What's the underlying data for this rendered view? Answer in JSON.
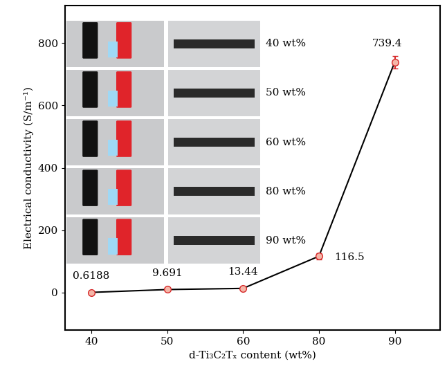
{
  "chart_data": {
    "type": "line",
    "x_label": "d-Ti₃C₂Tₓ content (wt%)",
    "y_label": "Electrical conductivity (S/m⁻¹)",
    "categories": [
      "40",
      "50",
      "60",
      "80",
      "90"
    ],
    "values": [
      0.6188,
      9.691,
      13.44,
      116.5,
      739.4
    ],
    "errors": [
      2,
      3,
      3,
      10,
      20
    ],
    "color": "#000000",
    "marker_color": "#d62728",
    "marker": "o",
    "line_style": "solid",
    "data_labels": true,
    "ylim": [
      -120,
      920
    ],
    "yticks": [
      0,
      200,
      400,
      600,
      800
    ],
    "grid": false,
    "annotations": [
      "40 wt%",
      "50 wt%",
      "60 wt%",
      "80 wt%",
      "90 wt%"
    ]
  }
}
